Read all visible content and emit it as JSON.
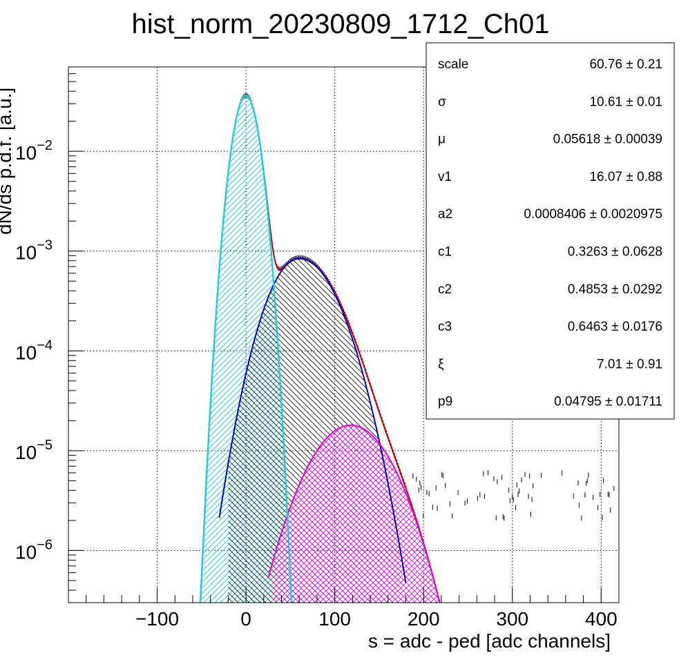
{
  "chart_data": {
    "type": "line",
    "title": "hist_norm_20230809_1712_Ch01",
    "xlabel": "s = adc - ped [adc channels]",
    "ylabel": "dN/ds p.d.f. [a.u.]",
    "xlim": [
      -200,
      420
    ],
    "ylim": [
      3e-07,
      0.07
    ],
    "yscale": "log",
    "grid": true,
    "x_ticks": [
      -100,
      0,
      100,
      200,
      300,
      400
    ],
    "x_tick_labels": [
      "−100",
      "0",
      "100",
      "200",
      "300",
      "400"
    ],
    "y_tick_labels": [
      {
        "exp": -6,
        "base": "10",
        "sup": "−6"
      },
      {
        "exp": -5,
        "base": "10",
        "sup": "−5"
      },
      {
        "exp": -4,
        "base": "10",
        "sup": "−4"
      },
      {
        "exp": -3,
        "base": "10",
        "sup": "−3"
      },
      {
        "exp": -2,
        "base": "10",
        "sup": "−2"
      }
    ],
    "series": [
      {
        "role": "data-histogram",
        "color": "#000000",
        "fill": "hatched"
      },
      {
        "role": "total-fit",
        "color": "#cc0000"
      },
      {
        "role": "pedestal-component",
        "color": "#22ccdd",
        "peak_x": 0,
        "peak_y": 0.036,
        "sigma": 10.6,
        "hatch": "/"
      },
      {
        "role": "single-pe-component",
        "color": "#0000cc",
        "peak_x": 60,
        "peak_y": 0.00085,
        "hatch": "\\"
      },
      {
        "role": "double-pe-component",
        "color": "#dd00dd",
        "peak_x": 118,
        "peak_y": 1.8e-05,
        "hatch": "x"
      }
    ],
    "stats_box": {
      "position": "top-right",
      "rows": [
        {
          "name": "scale",
          "value": "60.76 ± 0.21"
        },
        {
          "name": "σ",
          "value": "10.61 ± 0.01"
        },
        {
          "name": "μ",
          "value": "0.05618 ± 0.00039"
        },
        {
          "name": "v1",
          "value": "16.07 ± 0.88"
        },
        {
          "name": "a2",
          "value": "0.0008406 ± 0.0020975"
        },
        {
          "name": "c1",
          "value": "0.3263 ± 0.0628"
        },
        {
          "name": "c2",
          "value": "0.4853 ± 0.0292"
        },
        {
          "name": "c3",
          "value": "0.6463 ± 0.0176"
        },
        {
          "name": "ξ",
          "value": "7.01 ± 0.91"
        },
        {
          "name": "p9",
          "value": "0.04795 ± 0.01711"
        }
      ]
    }
  }
}
